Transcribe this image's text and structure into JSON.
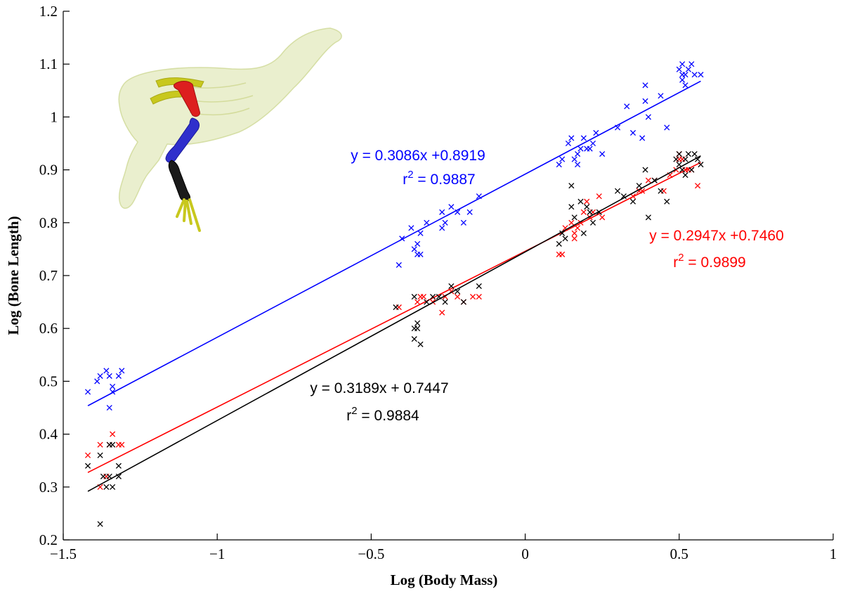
{
  "chart_data": {
    "type": "scatter",
    "title": "",
    "xlabel": "Log (Body Mass)",
    "ylabel": "Log (Bone Length)",
    "xlim": [
      -1.5,
      1
    ],
    "ylim": [
      0.2,
      1.2
    ],
    "xticks": [
      -1.5,
      -1,
      -0.5,
      0,
      0.5,
      1
    ],
    "xtick_labels": [
      "−1.5",
      "−1",
      "−0.5",
      "0",
      "0.5",
      "1"
    ],
    "yticks": [
      0.2,
      0.3,
      0.4,
      0.5,
      0.6,
      0.7,
      0.8,
      0.9,
      1,
      1.1,
      1.2
    ],
    "ytick_labels": [
      "0.2",
      "0.3",
      "0.4",
      "0.5",
      "0.6",
      "0.7",
      "0.8",
      "0.9",
      "1",
      "1.1",
      "1.2"
    ],
    "grid": false,
    "legend": "none",
    "inset_image": "bird-skeleton-leg-bones-inset",
    "series": [
      {
        "color": "#0000ff",
        "marker": "x",
        "fit": {
          "slope": 0.3086,
          "intercept": 0.8919,
          "x_range": [
            -1.42,
            0.57
          ]
        },
        "equation": "y = 0.3086x +0.8919",
        "r2_prefix": "r",
        "r2_sup": "2",
        "r2_value": " = 0.9887",
        "points": [
          [
            -1.42,
            0.48
          ],
          [
            -1.39,
            0.5
          ],
          [
            -1.38,
            0.51
          ],
          [
            -1.36,
            0.52
          ],
          [
            -1.35,
            0.51
          ],
          [
            -1.34,
            0.49
          ],
          [
            -1.35,
            0.45
          ],
          [
            -1.32,
            0.51
          ],
          [
            -1.31,
            0.52
          ],
          [
            -1.34,
            0.48
          ],
          [
            -0.41,
            0.72
          ],
          [
            -0.4,
            0.77
          ],
          [
            -0.37,
            0.79
          ],
          [
            -0.35,
            0.74
          ],
          [
            -0.36,
            0.75
          ],
          [
            -0.34,
            0.74
          ],
          [
            -0.34,
            0.78
          ],
          [
            -0.32,
            0.8
          ],
          [
            -0.27,
            0.82
          ],
          [
            -0.26,
            0.8
          ],
          [
            -0.24,
            0.83
          ],
          [
            -0.22,
            0.82
          ],
          [
            -0.2,
            0.8
          ],
          [
            -0.18,
            0.82
          ],
          [
            -0.15,
            0.85
          ],
          [
            -0.27,
            0.79
          ],
          [
            -0.35,
            0.76
          ],
          [
            0.11,
            0.91
          ],
          [
            0.12,
            0.92
          ],
          [
            0.14,
            0.95
          ],
          [
            0.15,
            0.96
          ],
          [
            0.17,
            0.93
          ],
          [
            0.18,
            0.94
          ],
          [
            0.19,
            0.96
          ],
          [
            0.2,
            0.94
          ],
          [
            0.21,
            0.94
          ],
          [
            0.22,
            0.95
          ],
          [
            0.23,
            0.97
          ],
          [
            0.25,
            0.93
          ],
          [
            0.16,
            0.92
          ],
          [
            0.17,
            0.91
          ],
          [
            0.3,
            0.98
          ],
          [
            0.33,
            1.02
          ],
          [
            0.35,
            0.97
          ],
          [
            0.38,
            0.96
          ],
          [
            0.39,
            1.03
          ],
          [
            0.4,
            1.0
          ],
          [
            0.39,
            1.06
          ],
          [
            0.44,
            1.04
          ],
          [
            0.46,
            0.98
          ],
          [
            0.5,
            1.09
          ],
          [
            0.51,
            1.1
          ],
          [
            0.52,
            1.08
          ],
          [
            0.53,
            1.09
          ],
          [
            0.54,
            1.1
          ],
          [
            0.55,
            1.08
          ],
          [
            0.57,
            1.08
          ],
          [
            0.51,
            1.07
          ],
          [
            0.52,
            1.06
          ],
          [
            0.51,
            1.08
          ]
        ]
      },
      {
        "color": "#ff0000",
        "marker": "x",
        "fit": {
          "slope": 0.2947,
          "intercept": 0.746,
          "x_range": [
            -1.42,
            0.57
          ]
        },
        "equation": "y = 0.2947x +0.7460",
        "r2_prefix": "r",
        "r2_sup": "2",
        "r2_value": " = 0.9899",
        "points": [
          [
            -1.42,
            0.36
          ],
          [
            -1.38,
            0.38
          ],
          [
            -1.36,
            0.32
          ],
          [
            -1.34,
            0.4
          ],
          [
            -1.35,
            0.38
          ],
          [
            -1.32,
            0.38
          ],
          [
            -1.31,
            0.38
          ],
          [
            -1.38,
            0.3
          ],
          [
            -0.41,
            0.64
          ],
          [
            -0.35,
            0.65
          ],
          [
            -0.34,
            0.66
          ],
          [
            -0.33,
            0.66
          ],
          [
            -0.3,
            0.65
          ],
          [
            -0.27,
            0.63
          ],
          [
            -0.26,
            0.66
          ],
          [
            -0.24,
            0.67
          ],
          [
            -0.22,
            0.66
          ],
          [
            -0.2,
            0.65
          ],
          [
            -0.17,
            0.66
          ],
          [
            -0.15,
            0.66
          ],
          [
            0.11,
            0.74
          ],
          [
            0.12,
            0.74
          ],
          [
            0.13,
            0.79
          ],
          [
            0.15,
            0.8
          ],
          [
            0.16,
            0.78
          ],
          [
            0.17,
            0.79
          ],
          [
            0.18,
            0.8
          ],
          [
            0.19,
            0.82
          ],
          [
            0.2,
            0.84
          ],
          [
            0.21,
            0.81
          ],
          [
            0.22,
            0.82
          ],
          [
            0.24,
            0.85
          ],
          [
            0.25,
            0.81
          ],
          [
            0.16,
            0.77
          ],
          [
            0.35,
            0.85
          ],
          [
            0.37,
            0.86
          ],
          [
            0.38,
            0.86
          ],
          [
            0.4,
            0.88
          ],
          [
            0.42,
            0.88
          ],
          [
            0.45,
            0.86
          ],
          [
            0.47,
            0.89
          ],
          [
            0.49,
            0.9
          ],
          [
            0.5,
            0.93
          ],
          [
            0.51,
            0.92
          ],
          [
            0.52,
            0.9
          ],
          [
            0.53,
            0.9
          ],
          [
            0.54,
            0.9
          ],
          [
            0.56,
            0.87
          ],
          [
            0.5,
            0.92
          ]
        ]
      },
      {
        "color": "#000000",
        "marker": "x",
        "fit": {
          "slope": 0.3189,
          "intercept": 0.7447,
          "x_range": [
            -1.42,
            0.57
          ]
        },
        "equation": "y = 0.3189x + 0.7447",
        "r2_prefix": "r",
        "r2_sup": "2",
        "r2_value": " = 0.9884",
        "points": [
          [
            -1.42,
            0.34
          ],
          [
            -1.38,
            0.36
          ],
          [
            -1.37,
            0.32
          ],
          [
            -1.36,
            0.3
          ],
          [
            -1.35,
            0.32
          ],
          [
            -1.34,
            0.3
          ],
          [
            -1.35,
            0.38
          ],
          [
            -1.34,
            0.38
          ],
          [
            -1.32,
            0.34
          ],
          [
            -1.32,
            0.32
          ],
          [
            -1.38,
            0.23
          ],
          [
            -0.42,
            0.64
          ],
          [
            -0.36,
            0.58
          ],
          [
            -0.36,
            0.6
          ],
          [
            -0.35,
            0.61
          ],
          [
            -0.35,
            0.6
          ],
          [
            -0.34,
            0.57
          ],
          [
            -0.36,
            0.66
          ],
          [
            -0.32,
            0.65
          ],
          [
            -0.3,
            0.66
          ],
          [
            -0.28,
            0.66
          ],
          [
            -0.26,
            0.65
          ],
          [
            -0.24,
            0.68
          ],
          [
            -0.22,
            0.67
          ],
          [
            -0.2,
            0.65
          ],
          [
            -0.15,
            0.68
          ],
          [
            0.11,
            0.76
          ],
          [
            0.12,
            0.78
          ],
          [
            0.13,
            0.77
          ],
          [
            0.15,
            0.83
          ],
          [
            0.15,
            0.87
          ],
          [
            0.16,
            0.81
          ],
          [
            0.18,
            0.84
          ],
          [
            0.19,
            0.78
          ],
          [
            0.2,
            0.83
          ],
          [
            0.21,
            0.82
          ],
          [
            0.22,
            0.8
          ],
          [
            0.24,
            0.82
          ],
          [
            0.3,
            0.86
          ],
          [
            0.32,
            0.85
          ],
          [
            0.35,
            0.84
          ],
          [
            0.37,
            0.87
          ],
          [
            0.39,
            0.9
          ],
          [
            0.4,
            0.81
          ],
          [
            0.42,
            0.88
          ],
          [
            0.44,
            0.86
          ],
          [
            0.46,
            0.84
          ],
          [
            0.49,
            0.92
          ],
          [
            0.5,
            0.91
          ],
          [
            0.51,
            0.9
          ],
          [
            0.52,
            0.92
          ],
          [
            0.53,
            0.93
          ],
          [
            0.54,
            0.9
          ],
          [
            0.55,
            0.93
          ],
          [
            0.56,
            0.92
          ],
          [
            0.57,
            0.91
          ],
          [
            0.5,
            0.93
          ],
          [
            0.52,
            0.89
          ]
        ]
      }
    ]
  }
}
